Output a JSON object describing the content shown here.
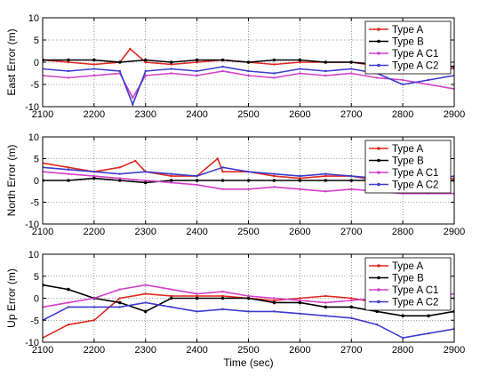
{
  "chart_data": [
    {
      "type": "line",
      "ylabel": "East Error (m)",
      "xlabel": "",
      "xlim": [
        2100,
        2900
      ],
      "ylim": [
        -10,
        10
      ],
      "xticks": [
        2100,
        2200,
        2300,
        2400,
        2500,
        2600,
        2700,
        2800,
        2900
      ],
      "yticks": [
        -10,
        -5,
        0,
        5,
        10
      ],
      "grid": true,
      "legend_position": "top-right",
      "series": [
        {
          "name": "Type A",
          "color": "#e0261e",
          "marker": "none",
          "x": [
            2100,
            2150,
            2200,
            2250,
            2270,
            2300,
            2350,
            2400,
            2450,
            2500,
            2550,
            2600,
            2650,
            2700,
            2730,
            2750,
            2800,
            2850,
            2900
          ],
          "y": [
            0.5,
            0,
            -0.5,
            0,
            3,
            0,
            -0.5,
            0,
            0.5,
            0,
            -0.5,
            0,
            0,
            0,
            -0.5,
            0,
            -0.5,
            -1,
            -1.5
          ]
        },
        {
          "name": "Type B",
          "color": "#000000",
          "marker": "dot",
          "x": [
            2100,
            2150,
            2200,
            2250,
            2300,
            2350,
            2400,
            2450,
            2500,
            2550,
            2600,
            2650,
            2700,
            2750,
            2800,
            2850,
            2900
          ],
          "y": [
            0.5,
            0.5,
            0.5,
            0,
            0.5,
            0,
            0.5,
            0.5,
            0,
            0.5,
            0.5,
            0,
            0,
            -0.5,
            -1,
            -0.5,
            -1
          ]
        },
        {
          "name": "Type A C1",
          "color": "#d23fc8",
          "marker": "none",
          "x": [
            2100,
            2150,
            2200,
            2250,
            2275,
            2300,
            2350,
            2400,
            2450,
            2500,
            2550,
            2600,
            2650,
            2700,
            2750,
            2800,
            2850,
            2900
          ],
          "y": [
            -3,
            -3.5,
            -3,
            -2.5,
            -8,
            -3,
            -2.5,
            -3,
            -2,
            -3,
            -3.5,
            -2.5,
            -3,
            -2.5,
            -3.5,
            -4,
            -5,
            -6
          ]
        },
        {
          "name": "Type A C2",
          "color": "#3c3ccc",
          "marker": "none",
          "x": [
            2100,
            2150,
            2200,
            2250,
            2275,
            2300,
            2350,
            2400,
            2450,
            2500,
            2550,
            2600,
            2650,
            2700,
            2750,
            2800,
            2850,
            2900
          ],
          "y": [
            -1.5,
            -2,
            -1.5,
            -2,
            -9.5,
            -2,
            -1.5,
            -2,
            -1,
            -2,
            -2.5,
            -1.5,
            -2,
            -1.5,
            -2.5,
            -5,
            -4,
            -3
          ]
        }
      ]
    },
    {
      "type": "line",
      "ylabel": "North Error (m)",
      "xlabel": "",
      "xlim": [
        2100,
        2900
      ],
      "ylim": [
        -10,
        10
      ],
      "xticks": [
        2100,
        2200,
        2300,
        2400,
        2500,
        2600,
        2700,
        2800,
        2900
      ],
      "yticks": [
        -10,
        -5,
        0,
        5,
        10
      ],
      "grid": true,
      "legend_position": "top-right",
      "series": [
        {
          "name": "Type A",
          "color": "#e0261e",
          "marker": "none",
          "x": [
            2100,
            2150,
            2200,
            2250,
            2280,
            2300,
            2350,
            2400,
            2440,
            2450,
            2500,
            2550,
            2600,
            2650,
            2700,
            2750,
            2800,
            2850,
            2900
          ],
          "y": [
            4,
            3,
            2,
            3,
            4.5,
            2,
            1,
            1,
            5,
            2,
            2,
            1,
            0.5,
            1,
            1,
            0,
            -0.5,
            0,
            0.5
          ]
        },
        {
          "name": "Type B",
          "color": "#000000",
          "marker": "dot",
          "x": [
            2100,
            2150,
            2200,
            2250,
            2300,
            2350,
            2400,
            2450,
            2500,
            2550,
            2600,
            2650,
            2700,
            2750,
            2800,
            2850,
            2900
          ],
          "y": [
            0,
            0,
            0.5,
            0,
            -0.5,
            0,
            0,
            0,
            0,
            0,
            0,
            0,
            0,
            0,
            -1,
            -0.5,
            0
          ]
        },
        {
          "name": "Type A C1",
          "color": "#d23fc8",
          "marker": "none",
          "x": [
            2100,
            2150,
            2200,
            2250,
            2300,
            2350,
            2400,
            2450,
            2500,
            2550,
            2600,
            2650,
            2700,
            2750,
            2800,
            2850,
            2900
          ],
          "y": [
            2,
            1.5,
            1,
            0.5,
            0,
            -0.5,
            -1,
            -2,
            -2,
            -1.5,
            -2,
            -2.5,
            -2,
            -2.5,
            -3,
            -3,
            -3
          ]
        },
        {
          "name": "Type A C2",
          "color": "#3c3ccc",
          "marker": "none",
          "x": [
            2100,
            2150,
            2200,
            2250,
            2300,
            2350,
            2400,
            2450,
            2500,
            2550,
            2600,
            2650,
            2700,
            2750,
            2800,
            2850,
            2900
          ],
          "y": [
            3,
            2.5,
            2,
            1.5,
            2,
            1.5,
            1,
            3,
            2,
            1.5,
            1,
            1.5,
            1,
            0.5,
            -1,
            0,
            1
          ]
        }
      ]
    },
    {
      "type": "line",
      "ylabel": "Up Error (m)",
      "xlabel": "Time (sec)",
      "xlim": [
        2100,
        2900
      ],
      "ylim": [
        -10,
        10
      ],
      "xticks": [
        2100,
        2200,
        2300,
        2400,
        2500,
        2600,
        2700,
        2800,
        2900
      ],
      "yticks": [
        -10,
        -5,
        0,
        5,
        10
      ],
      "grid": true,
      "legend_position": "top-right",
      "series": [
        {
          "name": "Type A",
          "color": "#e0261e",
          "marker": "none",
          "x": [
            2100,
            2150,
            2200,
            2250,
            2300,
            2350,
            2400,
            2450,
            2500,
            2550,
            2600,
            2650,
            2700,
            2750,
            2800,
            2850,
            2900
          ],
          "y": [
            -9,
            -6,
            -5,
            0,
            1,
            0.5,
            0.5,
            0.5,
            0,
            -0.5,
            0,
            0.5,
            0,
            -1,
            -0.5,
            0,
            0
          ]
        },
        {
          "name": "Type B",
          "color": "#000000",
          "marker": "dot",
          "x": [
            2100,
            2150,
            2200,
            2250,
            2300,
            2350,
            2400,
            2450,
            2500,
            2550,
            2600,
            2650,
            2700,
            2750,
            2800,
            2850,
            2900
          ],
          "y": [
            3,
            2,
            0,
            -1,
            -3,
            0,
            0,
            0,
            0,
            -1,
            -1,
            -2,
            -2,
            -3,
            -4,
            -4,
            -3
          ]
        },
        {
          "name": "Type A C1",
          "color": "#d23fc8",
          "marker": "none",
          "x": [
            2100,
            2150,
            2200,
            2250,
            2300,
            2350,
            2400,
            2450,
            2500,
            2550,
            2600,
            2650,
            2700,
            2750,
            2800,
            2850,
            2900
          ],
          "y": [
            -2,
            -1,
            0,
            2,
            3,
            2,
            1,
            1.5,
            0.5,
            0,
            -0.5,
            -1,
            -0.5,
            0,
            0.5,
            0.5,
            1
          ]
        },
        {
          "name": "Type A C2",
          "color": "#3c3ccc",
          "marker": "none",
          "x": [
            2100,
            2150,
            2200,
            2250,
            2300,
            2350,
            2400,
            2450,
            2500,
            2550,
            2600,
            2650,
            2700,
            2750,
            2800,
            2850,
            2900
          ],
          "y": [
            -5,
            -2,
            -2,
            -2,
            -1,
            -2,
            -3,
            -2.5,
            -3,
            -3,
            -3.5,
            -4,
            -4.5,
            -6,
            -9,
            -8,
            -7
          ]
        }
      ]
    }
  ]
}
